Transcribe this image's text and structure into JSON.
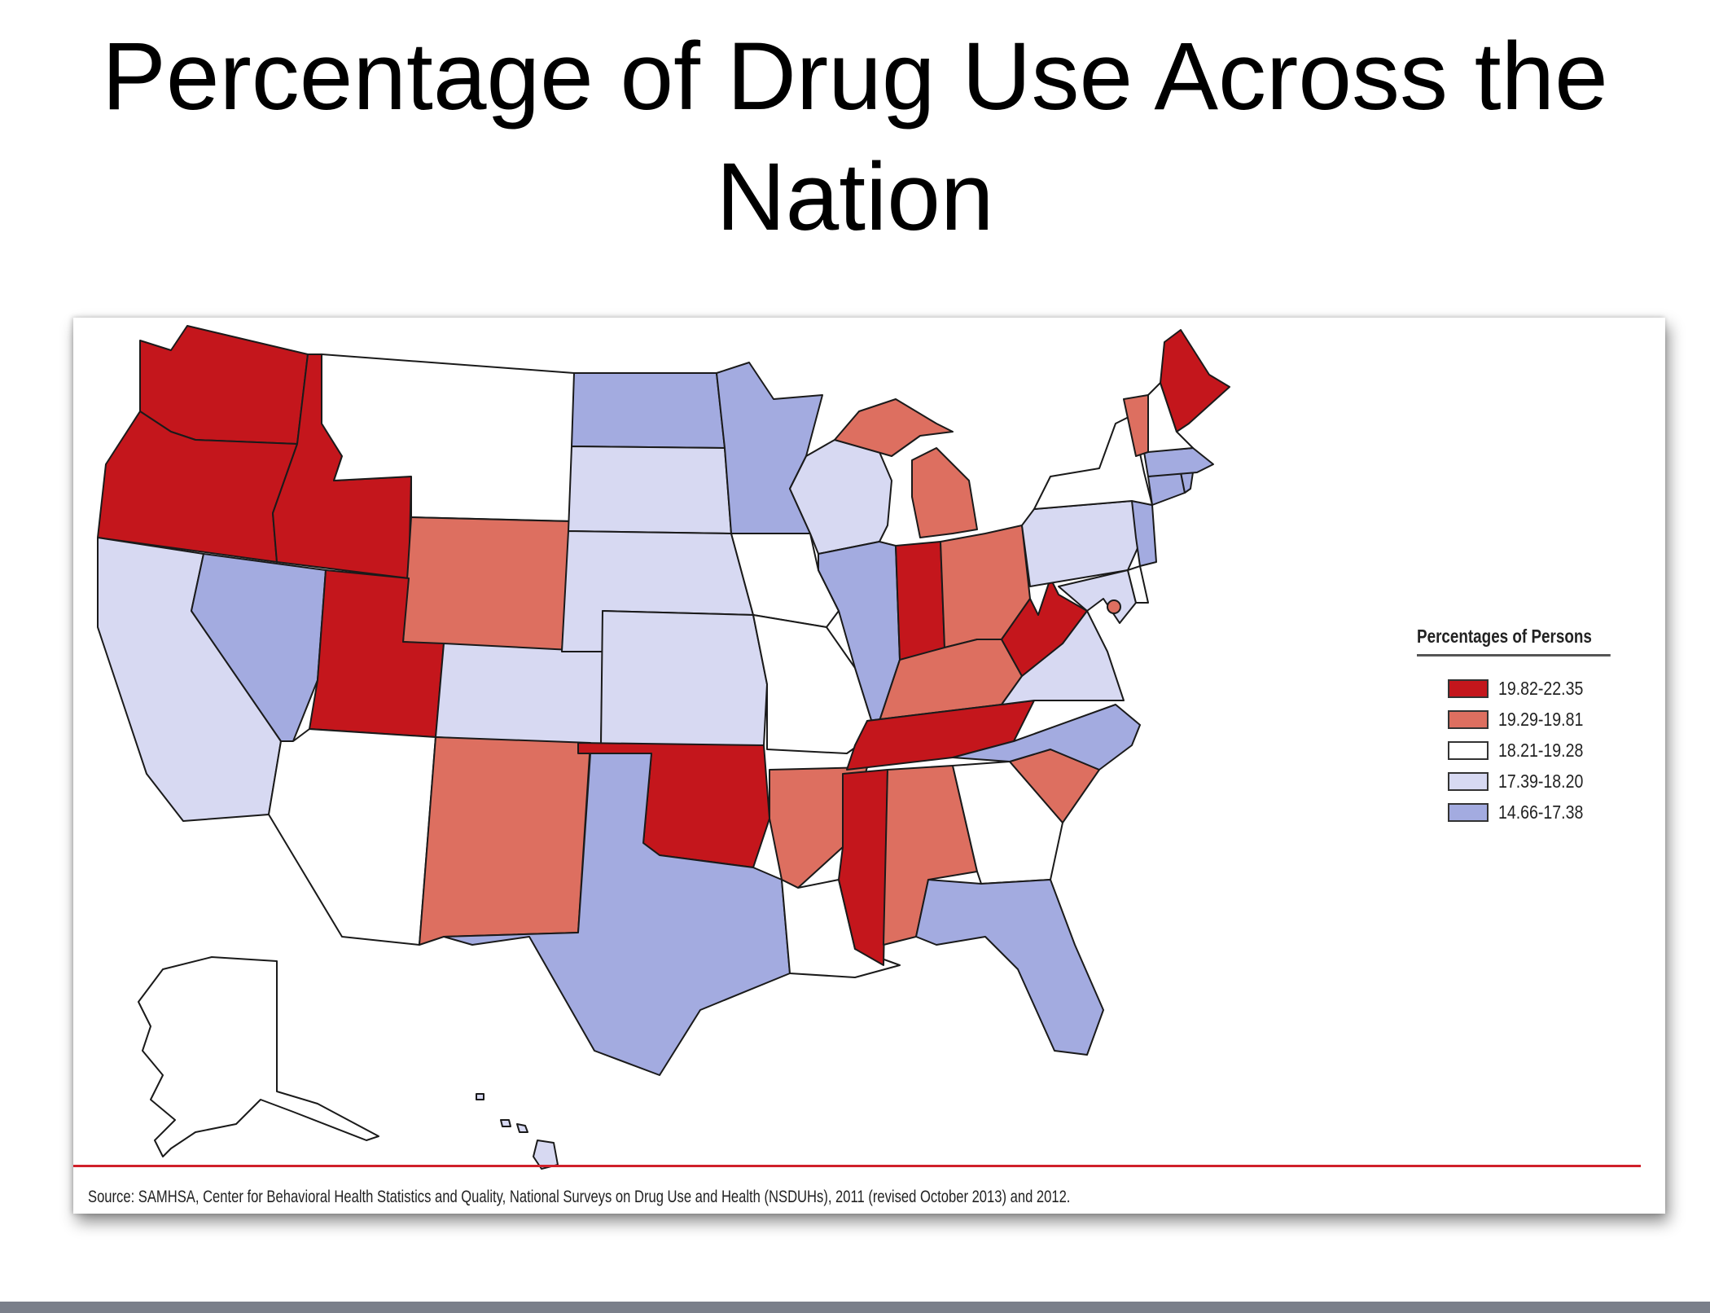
{
  "title": "Percentage of Drug Use Across the Nation",
  "legend": {
    "title": "Percentages of Persons",
    "bins": [
      {
        "label": "19.82-22.35",
        "color": "#c4161c"
      },
      {
        "label": "19.29-19.81",
        "color": "#dd6f60"
      },
      {
        "label": "18.21-19.28",
        "color": "#ffffff"
      },
      {
        "label": "17.39-18.20",
        "color": "#d7d9f2"
      },
      {
        "label": "14.66-17.38",
        "color": "#a3abe0"
      }
    ]
  },
  "source": "Source: SAMHSA, Center for Behavioral Health Statistics and Quality, National Surveys on Drug Use and Health (NSDUHs), 2011 (revised October 2013) and 2012.",
  "states": {
    "WA": "19.82-22.35",
    "OR": "19.82-22.35",
    "ID": "19.82-22.35",
    "UT": "19.82-22.35",
    "OK": "19.82-22.35",
    "TN": "19.82-22.35",
    "MS": "19.82-22.35",
    "IN": "19.82-22.35",
    "WV": "19.82-22.35",
    "ME": "19.82-22.35",
    "WY": "19.29-19.81",
    "NM": "19.29-19.81",
    "AR": "19.29-19.81",
    "AL": "19.29-19.81",
    "KY": "19.29-19.81",
    "OH": "19.29-19.81",
    "MI": "19.29-19.81",
    "SC": "19.29-19.81",
    "VT": "19.29-19.81",
    "DC": "19.29-19.81",
    "MT": "18.21-19.28",
    "AZ": "18.21-19.28",
    "IA": "18.21-19.28",
    "MO": "18.21-19.28",
    "LA": "18.21-19.28",
    "GA": "18.21-19.28",
    "NY": "18.21-19.28",
    "NH": "18.21-19.28",
    "DE": "18.21-19.28",
    "AK": "18.21-19.28",
    "CA": "17.39-18.20",
    "CO": "17.39-18.20",
    "SD": "17.39-18.20",
    "NE": "17.39-18.20",
    "KS": "17.39-18.20",
    "WI": "17.39-18.20",
    "PA": "17.39-18.20",
    "VA": "17.39-18.20",
    "MD": "17.39-18.20",
    "HI": "17.39-18.20",
    "NV": "14.66-17.38",
    "ND": "14.66-17.38",
    "MN": "14.66-17.38",
    "TX": "14.66-17.38",
    "IL": "14.66-17.38",
    "NC": "14.66-17.38",
    "FL": "14.66-17.38",
    "NJ": "14.66-17.38",
    "MA": "14.66-17.38",
    "CT": "14.66-17.38",
    "RI": "14.66-17.38"
  }
}
